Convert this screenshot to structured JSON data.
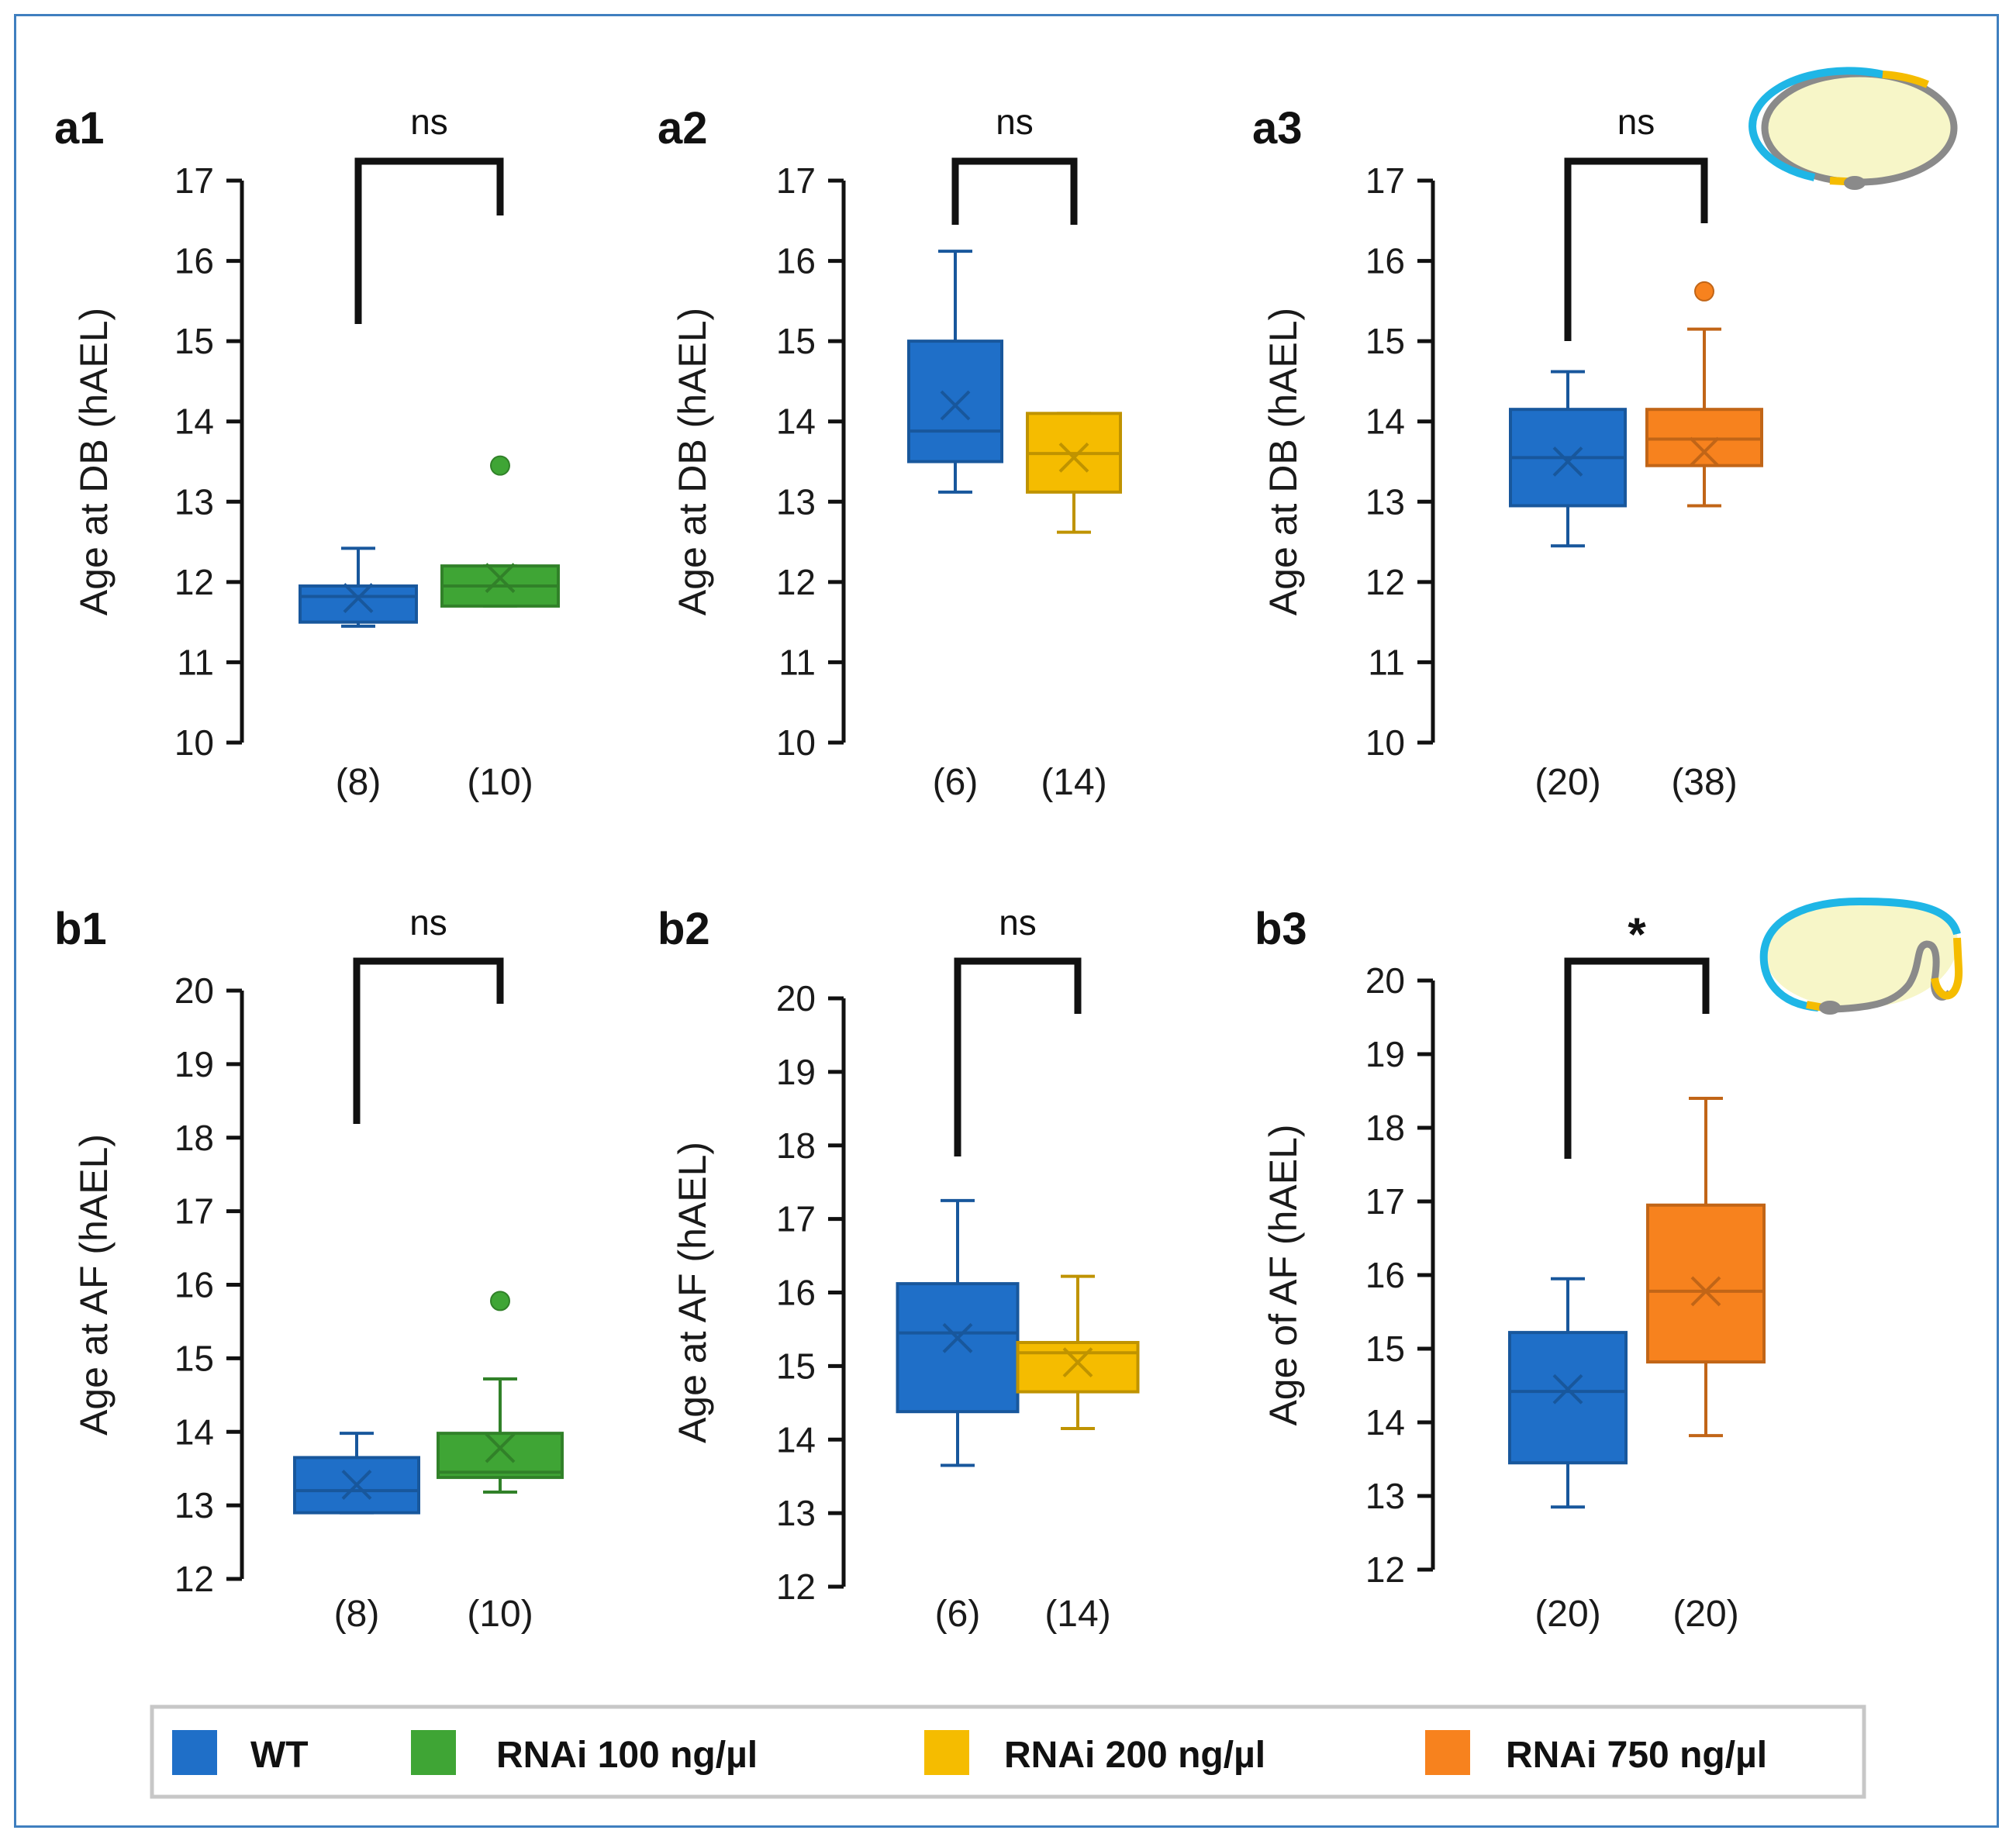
{
  "colors": {
    "WT": "#1f6fc8",
    "RNAi 100 ng/µl": "#3fa535",
    "RNAi 200 ng/µl": "#f5bc00",
    "RNAi 750 ng/µl": "#f7821e",
    "frame": "#3f7fbf",
    "embryo_fill": "#f7f6c8",
    "embryo_blue": "#1fb6e6",
    "embryo_yellow": "#f5bc00",
    "embryo_gray": "#8a8a8a"
  },
  "legend": {
    "items": [
      {
        "label": "WT",
        "color": "#1f6fc8"
      },
      {
        "label": "RNAi 100 ng/µl",
        "color": "#3fa535"
      },
      {
        "label": "RNAi 200 ng/µl",
        "color": "#f5bc00"
      },
      {
        "label": "RNAi 750 ng/µl",
        "color": "#f7821e"
      }
    ]
  },
  "chart_data": [
    {
      "panel": "a1",
      "type": "box",
      "ylabel": "Age at DB (hAEL)",
      "ylim": [
        10,
        17
      ],
      "yticks": [
        10,
        11,
        12,
        13,
        14,
        15,
        16,
        17
      ],
      "significance": "ns",
      "boxes": [
        {
          "group": "WT",
          "n_label": "(8)",
          "min": 11.45,
          "q1": 11.5,
          "median": 11.82,
          "q3": 11.95,
          "max": 12.42,
          "mean": 11.8,
          "outliers": []
        },
        {
          "group": "RNAi 100 ng/µl",
          "n_label": "(10)",
          "min": 11.7,
          "q1": 11.7,
          "median": 11.95,
          "q3": 12.2,
          "max": 12.2,
          "mean": 12.05,
          "outliers": [
            13.45
          ]
        }
      ]
    },
    {
      "panel": "a2",
      "type": "box",
      "ylabel": "Age at DB (hAEL)",
      "ylim": [
        10,
        17
      ],
      "yticks": [
        10,
        11,
        12,
        13,
        14,
        15,
        16,
        17
      ],
      "significance": "ns",
      "boxes": [
        {
          "group": "WT",
          "n_label": "(6)",
          "min": 13.12,
          "q1": 13.5,
          "median": 13.88,
          "q3": 15.0,
          "max": 16.12,
          "mean": 14.2,
          "outliers": []
        },
        {
          "group": "RNAi 200 ng/µl",
          "n_label": "(14)",
          "min": 12.62,
          "q1": 13.12,
          "median": 13.6,
          "q3": 14.1,
          "max": 14.1,
          "mean": 13.55,
          "outliers": []
        }
      ]
    },
    {
      "panel": "a3",
      "type": "box",
      "ylabel": "Age at DB (hAEL)",
      "ylim": [
        10,
        17
      ],
      "yticks": [
        10,
        11,
        12,
        13,
        14,
        15,
        16,
        17
      ],
      "significance": "ns",
      "boxes": [
        {
          "group": "WT",
          "n_label": "(20)",
          "min": 12.45,
          "q1": 12.95,
          "median": 13.55,
          "q3": 14.15,
          "max": 14.62,
          "mean": 13.5,
          "outliers": []
        },
        {
          "group": "RNAi 750 ng/µl",
          "n_label": "(38)",
          "min": 12.95,
          "q1": 13.45,
          "median": 13.78,
          "q3": 14.15,
          "max": 15.15,
          "mean": 13.62,
          "outliers": [
            15.62
          ]
        }
      ]
    },
    {
      "panel": "b1",
      "type": "box",
      "ylabel": "Age at AF (hAEL)",
      "ylim": [
        12,
        20
      ],
      "yticks": [
        12,
        13,
        14,
        15,
        16,
        17,
        18,
        19,
        20
      ],
      "significance": "ns",
      "boxes": [
        {
          "group": "WT",
          "n_label": "(8)",
          "min": 12.9,
          "q1": 12.9,
          "median": 13.2,
          "q3": 13.65,
          "max": 13.98,
          "mean": 13.28,
          "outliers": []
        },
        {
          "group": "RNAi 100 ng/µl",
          "n_label": "(10)",
          "min": 13.18,
          "q1": 13.38,
          "median": 13.45,
          "q3": 13.98,
          "max": 14.72,
          "mean": 13.78,
          "outliers": [
            15.78
          ]
        }
      ]
    },
    {
      "panel": "b2",
      "type": "box",
      "ylabel": "Age at AF (hAEL)",
      "ylim": [
        12,
        20
      ],
      "yticks": [
        12,
        13,
        14,
        15,
        16,
        17,
        18,
        19,
        20
      ],
      "significance": "ns",
      "boxes": [
        {
          "group": "WT",
          "n_label": "(6)",
          "min": 13.65,
          "q1": 14.38,
          "median": 15.45,
          "q3": 16.12,
          "max": 17.25,
          "mean": 15.38,
          "outliers": []
        },
        {
          "group": "RNAi 200 ng/µl",
          "n_label": "(14)",
          "min": 14.15,
          "q1": 14.65,
          "median": 15.18,
          "q3": 15.32,
          "max": 16.22,
          "mean": 15.05,
          "outliers": []
        }
      ]
    },
    {
      "panel": "b3",
      "type": "box",
      "ylabel": "Age of AF (hAEL)",
      "ylim": [
        12,
        20
      ],
      "yticks": [
        12,
        13,
        14,
        15,
        16,
        17,
        18,
        19,
        20
      ],
      "significance": "*",
      "boxes": [
        {
          "group": "WT",
          "n_label": "(20)",
          "min": 12.85,
          "q1": 13.45,
          "median": 14.42,
          "q3": 15.22,
          "max": 15.95,
          "mean": 14.45,
          "outliers": []
        },
        {
          "group": "RNAi 750 ng/µl",
          "n_label": "(20)",
          "min": 13.82,
          "q1": 14.82,
          "median": 15.78,
          "q3": 16.95,
          "max": 18.4,
          "mean": 15.78,
          "outliers": []
        }
      ]
    }
  ]
}
